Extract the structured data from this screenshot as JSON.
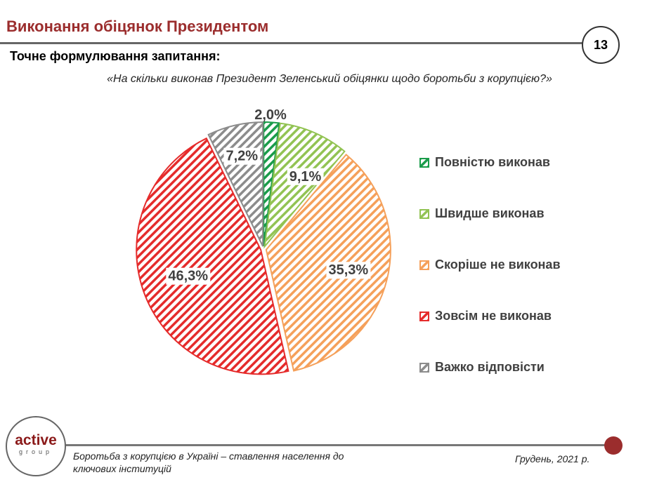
{
  "header": {
    "title": "Виконання обіцянок Президентом",
    "page_number": "13",
    "subtitle": "Точне формулювання запитання:",
    "question": "«На скільки виконав Президент Зеленський обіцянки щодо боротьби з корупцією?»"
  },
  "chart_data": {
    "type": "pie",
    "start": "top",
    "direction": "clockwise",
    "slices": [
      {
        "label": "Повністю виконав",
        "value": 2.0,
        "display": "2,0%",
        "color": "#1a9c4a"
      },
      {
        "label": "Швидше виконав",
        "value": 9.1,
        "display": "9,1%",
        "color": "#92c353"
      },
      {
        "label": "Скоріше не виконав",
        "value": 35.3,
        "display": "35,3%",
        "color": "#f5a05a"
      },
      {
        "label": "Зовсім не виконав",
        "value": 46.3,
        "display": "46,3%",
        "color": "#e52b2b"
      },
      {
        "label": "Важко відповісти",
        "value": 7.2,
        "display": "7,2%",
        "color": "#8c8c8c"
      }
    ],
    "legend": "right"
  },
  "footer": {
    "logo": "active group",
    "text": "Боротьба з корупцією в Україні – ставлення населення до ключових інституцій",
    "date": "Грудень, 2021 р."
  }
}
